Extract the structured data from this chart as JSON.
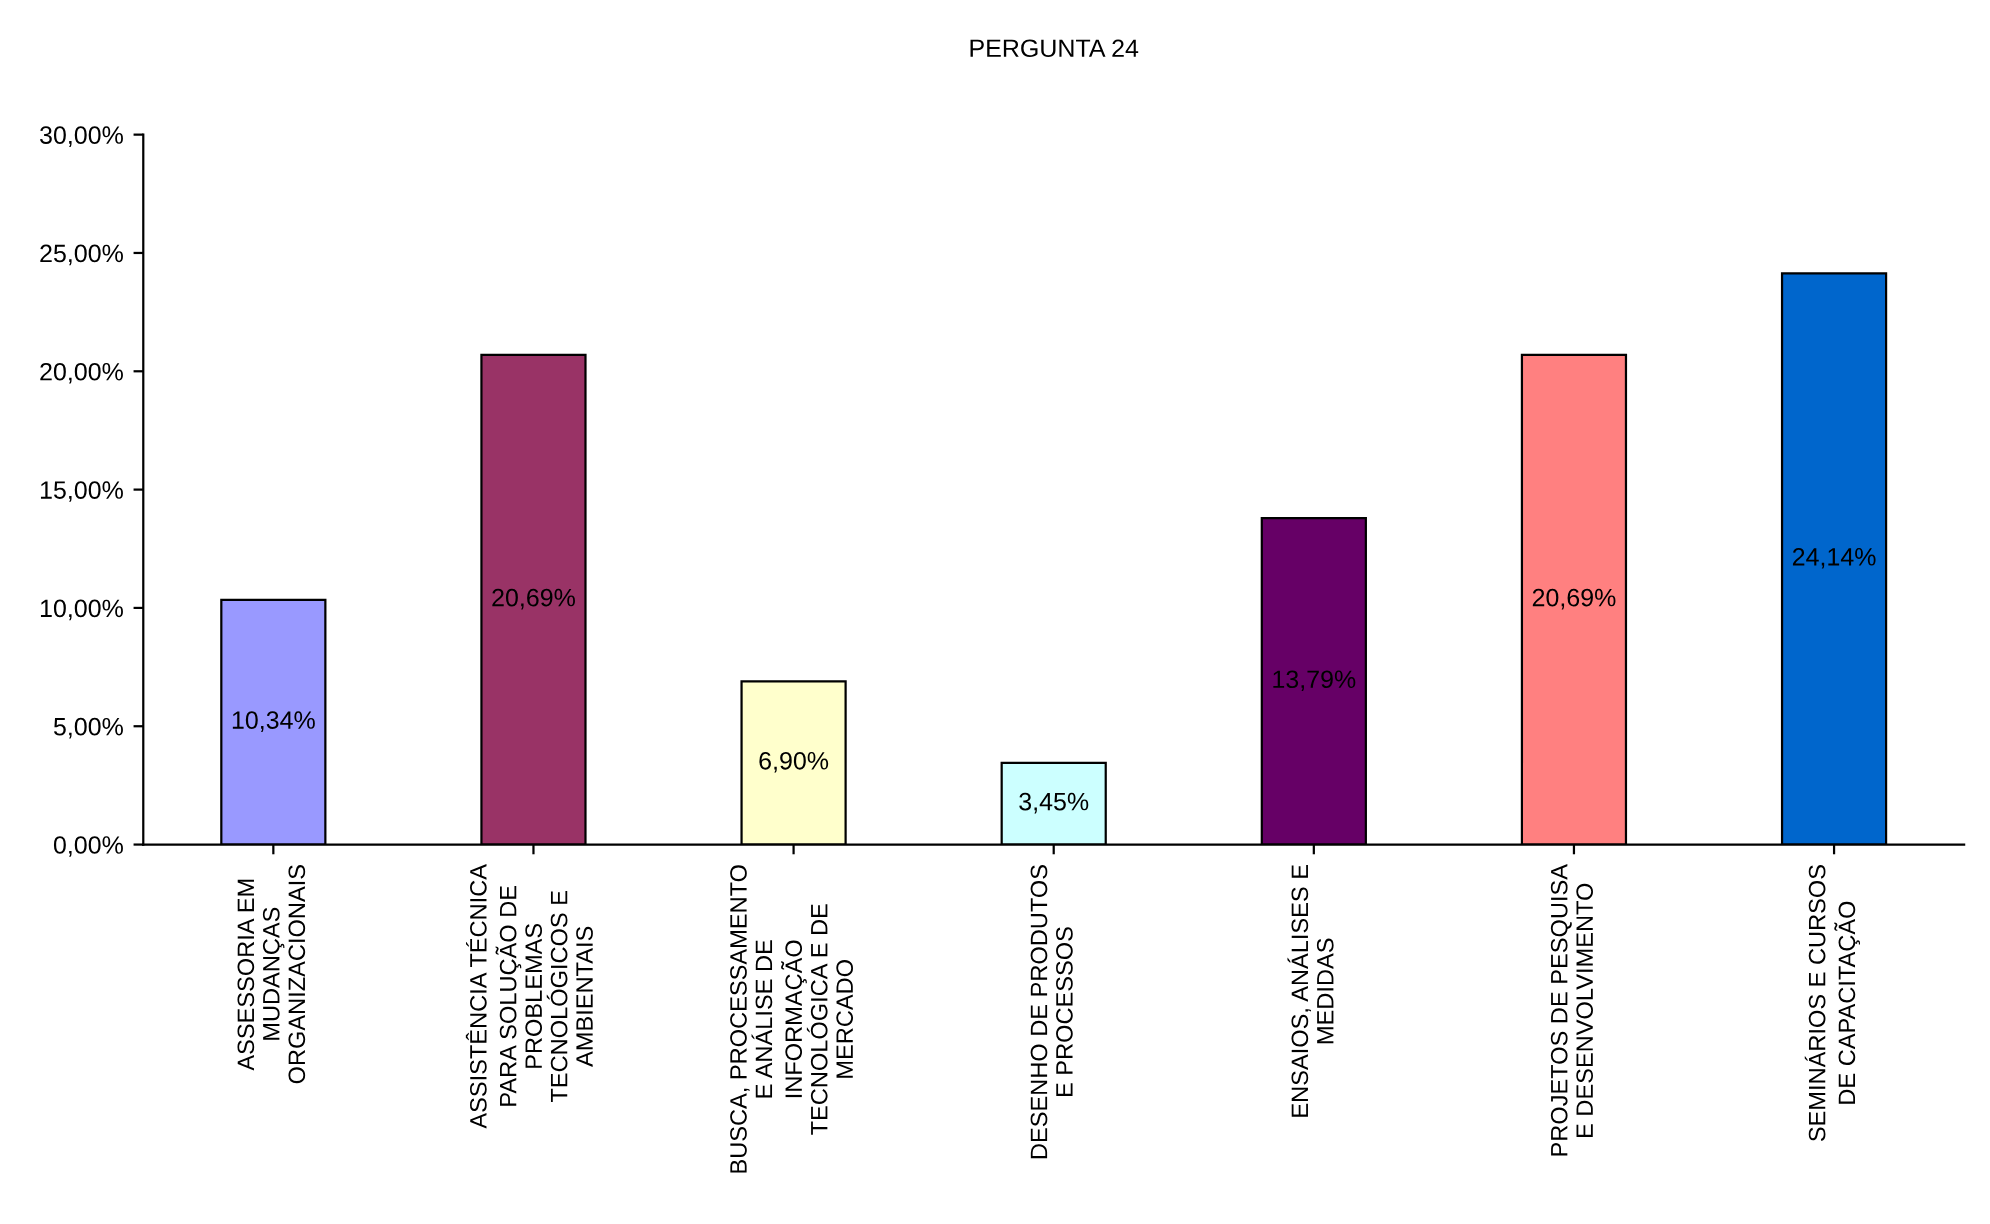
{
  "chart_data": {
    "type": "bar",
    "title": "PERGUNTA 24",
    "categories": [
      "ASSESSORIA EM\nMUDANÇAS\nORGANIZACIONAIS",
      "ASSISTÊNCIA TÉCNICA\nPARA SOLUÇÃO DE\nPROBLEMAS\nTECNOLÓGICOS E\nAMBIENTAIS",
      "BUSCA, PROCESSAMENTO\nE ANÁLISE DE\nINFORMAÇÃO\nTECNOLÓGICA E DE\nMERCADO",
      "DESENHO DE PRODUTOS\nE PROCESSOS",
      "ENSAIOS, ANÁLISES E\nMEDIDAS",
      "PROJETOS DE PESQUISA\nE DESENVOLVIMENTO",
      "SEMINÁRIOS E CURSOS\nDE CAPACITAÇÃO"
    ],
    "values": [
      10.34,
      20.69,
      6.9,
      3.45,
      13.79,
      20.69,
      24.14
    ],
    "value_labels": [
      "10,34%",
      "20,69%",
      "6,90%",
      "3,45%",
      "13,79%",
      "20,69%",
      "24,14%"
    ],
    "colors": [
      "#9999ff",
      "#993366",
      "#ffffcc",
      "#ccffff",
      "#660066",
      "#ff8080",
      "#0066cc"
    ],
    "ylim": [
      0,
      30
    ],
    "yticks": [
      {
        "value": 0,
        "label": "0,00%"
      },
      {
        "value": 5,
        "label": "5,00%"
      },
      {
        "value": 10,
        "label": "10,00%"
      },
      {
        "value": 15,
        "label": "15,00%"
      },
      {
        "value": 20,
        "label": "20,00%"
      },
      {
        "value": 25,
        "label": "25,00%"
      },
      {
        "value": 30,
        "label": "30,00%"
      }
    ],
    "grid": false,
    "legend": false
  }
}
